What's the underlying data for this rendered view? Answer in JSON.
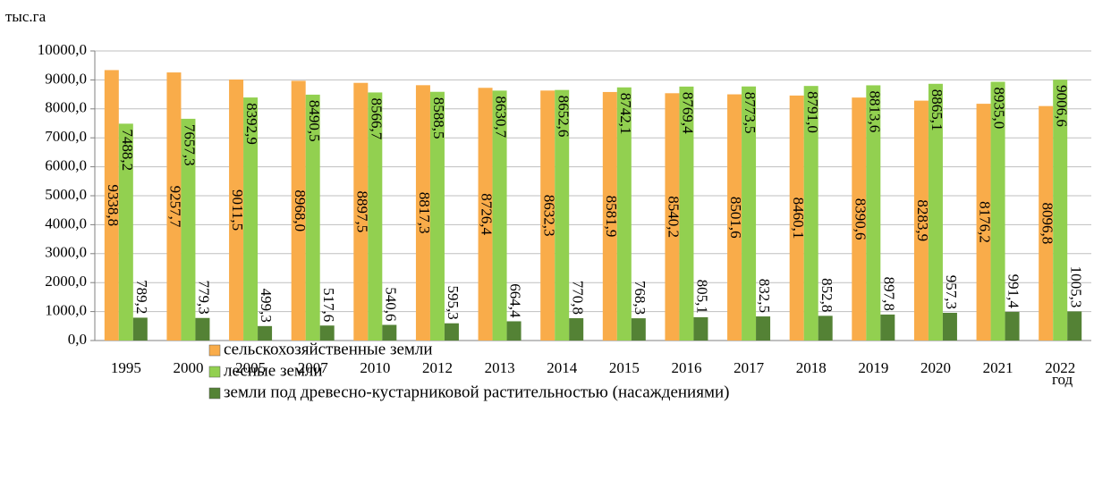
{
  "chart_data": {
    "type": "bar",
    "y_axis_label": "тыс.га",
    "x_axis_label": "год",
    "categories": [
      "1995",
      "2000",
      "2005",
      "2007",
      "2010",
      "2012",
      "2013",
      "2014",
      "2015",
      "2016",
      "2017",
      "2018",
      "2019",
      "2020",
      "2021",
      "2022"
    ],
    "series": [
      {
        "name": "сельскохозяйственные земли",
        "color": "#f9ac4a",
        "values": [
          9338.8,
          9257.7,
          9011.5,
          8968.0,
          8897.5,
          8817.3,
          8726.4,
          8632.3,
          8581.9,
          8540.2,
          8501.6,
          8460.1,
          8390.6,
          8283.9,
          8176.2,
          8096.8
        ],
        "value_labels": [
          "9338,8",
          "9257,7",
          "9011,5",
          "8968,0",
          "8897,5",
          "8817,3",
          "8726,4",
          "8632,3",
          "8581,9",
          "8540,2",
          "8501,6",
          "8460,1",
          "8390,6",
          "8283,9",
          "8176,2",
          "8096,8"
        ]
      },
      {
        "name": "лесные земли",
        "color": "#92d050",
        "values": [
          7488.2,
          7657.3,
          8392.9,
          8490.5,
          8566.7,
          8588.5,
          8630.7,
          8652.6,
          8742.1,
          8769.4,
          8773.5,
          8791.0,
          8813.6,
          8865.1,
          8935.0,
          9006.6
        ],
        "value_labels": [
          "7488,2",
          "7657,3",
          "8392,9",
          "8490,5",
          "8566,7",
          "8588,5",
          "8630,7",
          "8652,6",
          "8742,1",
          "8769,4",
          "8773,5",
          "8791,0",
          "8813,6",
          "8865,1",
          "8935,0",
          "9006,6"
        ]
      },
      {
        "name": "земли под древесно-кустарниковой растительностью (насаждениями)",
        "color": "#548235",
        "values": [
          789.2,
          779.3,
          499.3,
          517.6,
          540.6,
          595.3,
          664.4,
          770.8,
          768.3,
          805.1,
          832.5,
          852.8,
          897.8,
          957.3,
          991.4,
          1005.3
        ],
        "value_labels": [
          "789,2",
          "779,3",
          "499,3",
          "517,6",
          "540,6",
          "595,3",
          "664,4",
          "770,8",
          "768,3",
          "805,1",
          "832,5",
          "852,8",
          "897,8",
          "957,3",
          "991,4",
          "1005,3"
        ]
      }
    ],
    "ylim": [
      0,
      10000
    ],
    "yticks": [
      {
        "value": 0,
        "label": "0,0"
      },
      {
        "value": 1000,
        "label": "1000,0"
      },
      {
        "value": 2000,
        "label": "2000,0"
      },
      {
        "value": 3000,
        "label": "3000,0"
      },
      {
        "value": 4000,
        "label": "4000,0"
      },
      {
        "value": 5000,
        "label": "5000,0"
      },
      {
        "value": 6000,
        "label": "6000,0"
      },
      {
        "value": 7000,
        "label": "7000,0"
      },
      {
        "value": 8000,
        "label": "8000,0"
      },
      {
        "value": 9000,
        "label": "9000,0"
      },
      {
        "value": 10000,
        "label": "10000,0"
      }
    ],
    "grid": true,
    "legend_position": "bottom"
  }
}
